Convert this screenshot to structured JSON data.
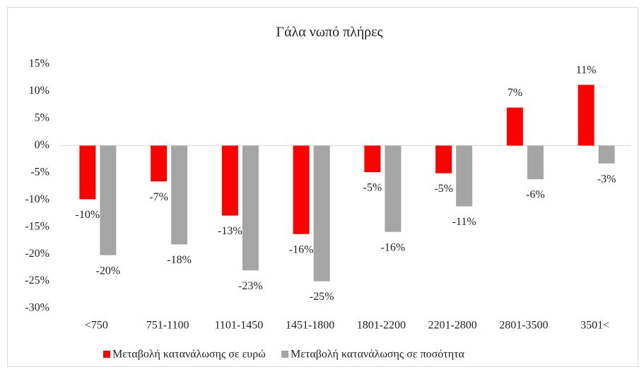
{
  "chart_data": {
    "type": "bar",
    "title": "Γάλα νωπό πλήρες",
    "categories": [
      "<750",
      "751-1100",
      "1101-1450",
      "1451-1800",
      "1801-2200",
      "2201-2800",
      "2801-3500",
      "3501<"
    ],
    "series": [
      {
        "name": "Μεταβολή κατανάλωσης σε ευρώ",
        "color": "#ff0000",
        "values": [
          -9.9,
          -6.6,
          -12.9,
          -16.3,
          -4.9,
          -5.1,
          7.0,
          11.2
        ],
        "value_labels": [
          "-10%",
          "-7%",
          "-13%",
          "-16%",
          "-5%",
          "-5%",
          "7%",
          "11%"
        ]
      },
      {
        "name": "Μεταβολή κατανάλωσης σε ποσότητα",
        "color": "#a5a5a5",
        "values": [
          -20.2,
          -18.2,
          -23.0,
          -25.0,
          -15.9,
          -11.2,
          -6.2,
          -3.3
        ],
        "value_labels": [
          "-20%",
          "-18%",
          "-23%",
          "-25%",
          "-16%",
          "-11%",
          "-6%",
          "-3%"
        ]
      }
    ],
    "ylim": [
      -30,
      15
    ],
    "yticks": [
      {
        "value": -30,
        "label": "-30%"
      },
      {
        "value": -25,
        "label": "-25%"
      },
      {
        "value": -20,
        "label": "-20%"
      },
      {
        "value": -15,
        "label": "-15%"
      },
      {
        "value": -10,
        "label": "-10%"
      },
      {
        "value": -5,
        "label": "-5%"
      },
      {
        "value": 0,
        "label": "0%"
      },
      {
        "value": 5,
        "label": "5%"
      },
      {
        "value": 10,
        "label": "10%"
      },
      {
        "value": 15,
        "label": "15%"
      }
    ],
    "grid": false
  }
}
